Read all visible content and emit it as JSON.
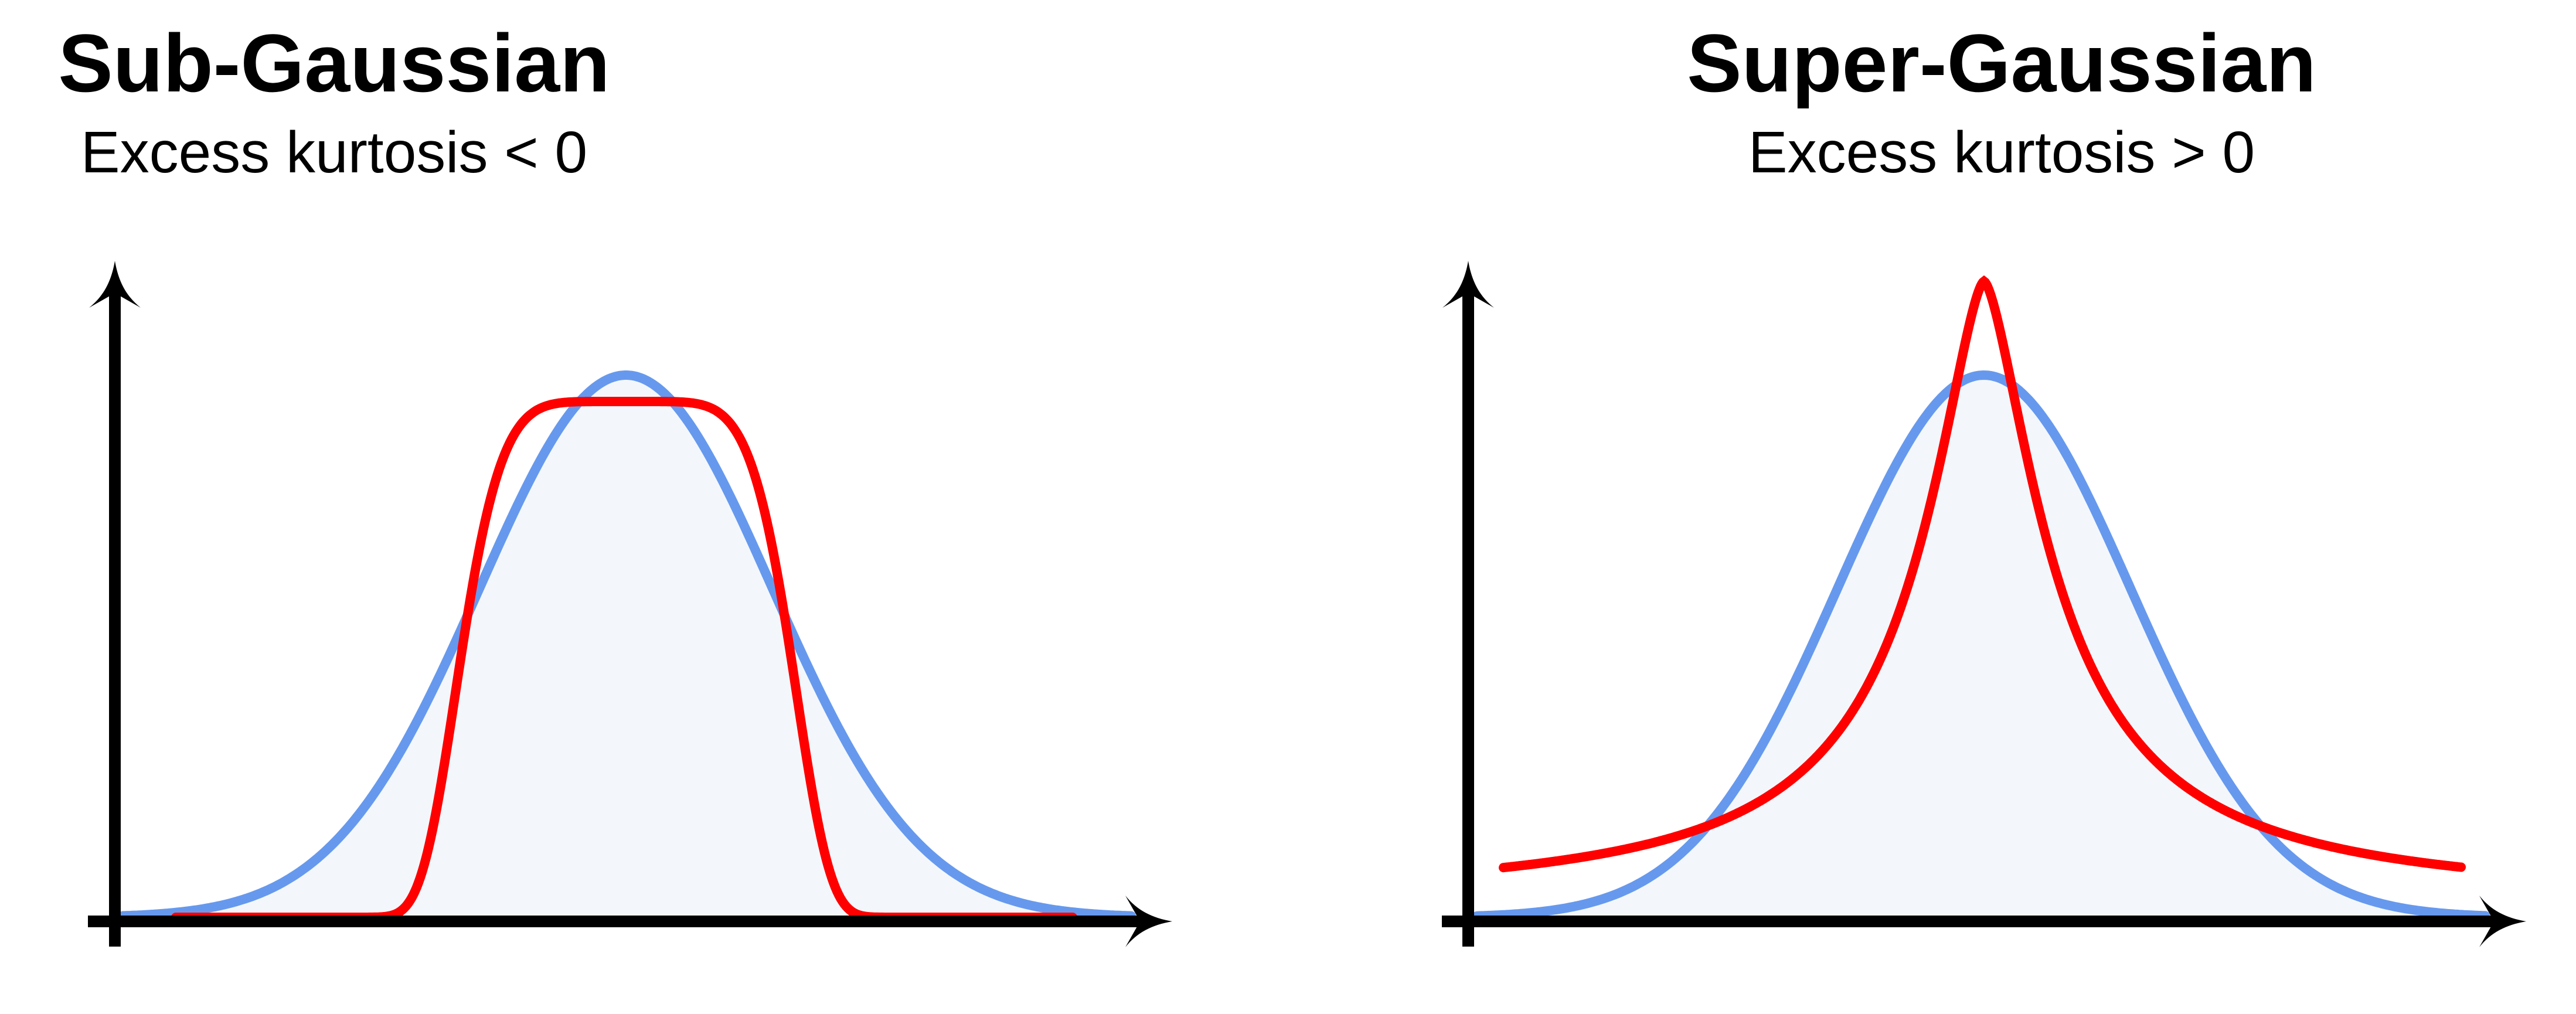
{
  "panels": [
    {
      "title": "Sub-Gaussian",
      "subtitle": "Excess kurtosis < 0",
      "reference_curve": "gaussian",
      "highlight_curve": "sub-gaussian (platykurtic, flat-topped)"
    },
    {
      "title": "Super-Gaussian",
      "subtitle": "Excess kurtosis > 0",
      "reference_curve": "gaussian",
      "highlight_curve": "super-gaussian (leptokurtic, sharp peak, heavy tails)"
    }
  ],
  "colors": {
    "gaussian_line": "#6699ee",
    "gaussian_fill": "#f3f7fc",
    "highlight_line": "#ff0000",
    "axis": "#000000",
    "background": "#ffffff"
  },
  "icons": {
    "axis_arrowheads": "arrow-head-icon"
  }
}
